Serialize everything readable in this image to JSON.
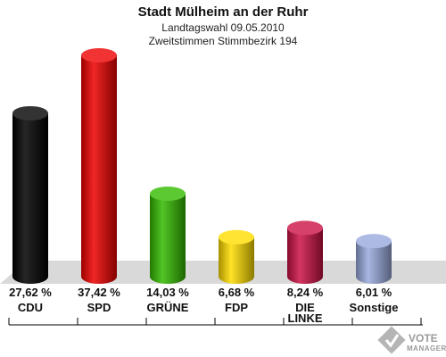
{
  "chart_data": {
    "type": "bar",
    "title": "Stadt Mülheim an der Ruhr",
    "subtitle_1": "Landtagswahl 09.05.2010",
    "subtitle_2": "Zweitstimmen Stimmbezirk 194",
    "categories": [
      "CDU",
      "SPD",
      "GRÜNE",
      "FDP",
      "DIE LINKE",
      "Sonstige"
    ],
    "category_lines": [
      [
        "CDU"
      ],
      [
        "SPD"
      ],
      [
        "GRÜNE"
      ],
      [
        "FDP"
      ],
      [
        "DIE",
        "LINKE"
      ],
      [
        "Sonstige"
      ]
    ],
    "values": [
      27.62,
      37.42,
      14.03,
      6.68,
      8.24,
      6.01
    ],
    "value_labels": [
      "27,62 %",
      "37,42 %",
      "14,03 %",
      "6,68 %",
      "8,24 %",
      "6,01 %"
    ],
    "colors": [
      "#000000",
      "#ee0000",
      "#33bb00",
      "#ffdd00",
      "#cc1144",
      "#99aadd"
    ],
    "ylim": [
      0,
      40
    ],
    "grid": false,
    "legend": "none"
  },
  "logo": {
    "line1": "VOTE",
    "line2": "MANAGER"
  }
}
